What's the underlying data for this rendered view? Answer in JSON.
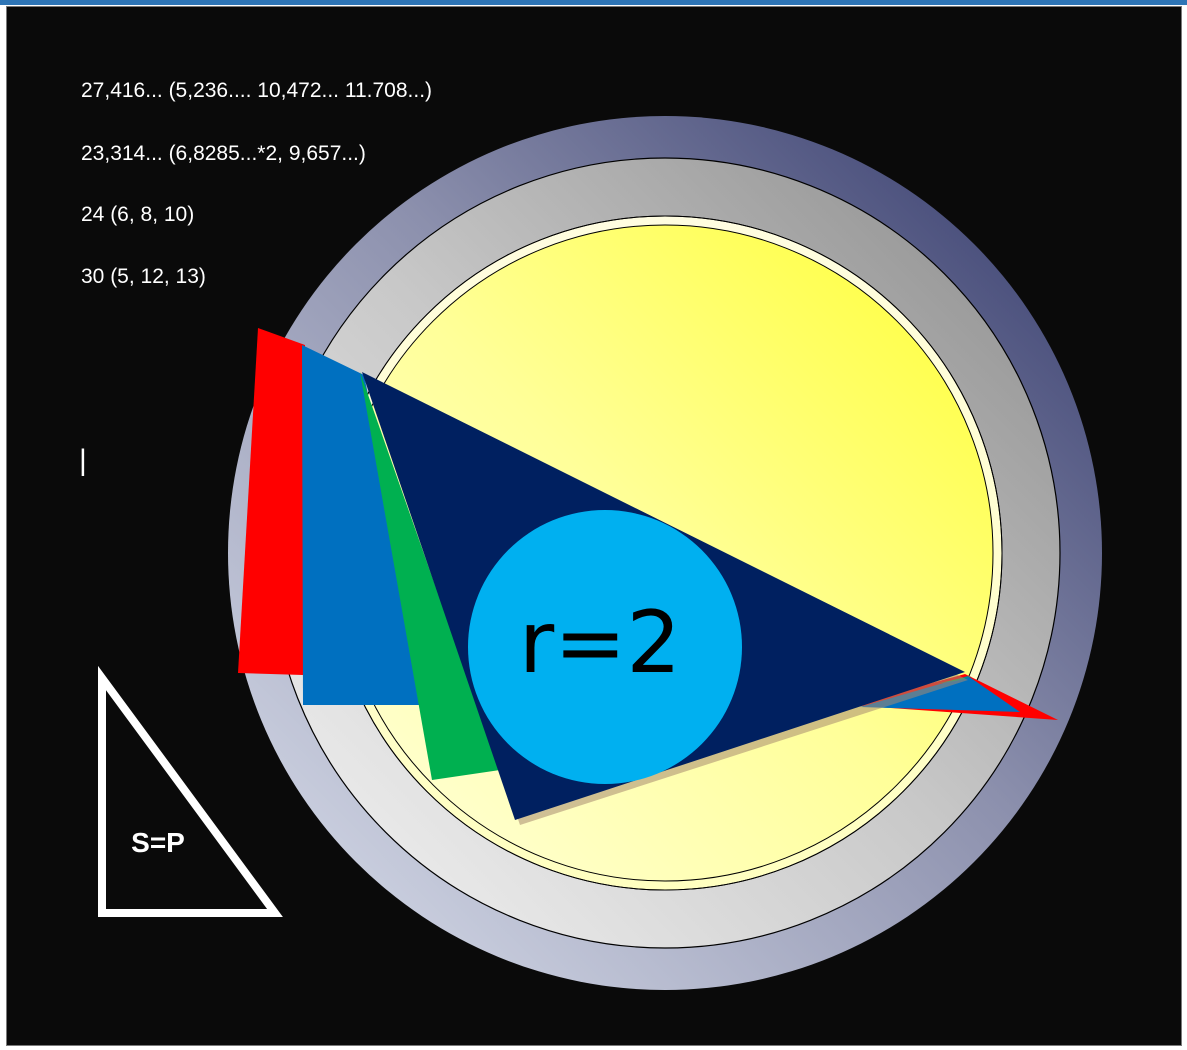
{
  "text_lines": [
    "27,416... (5,236.... 10,472... 11.708...)",
    "23,314... (6,8285...*2, 9,657...)",
    "24 (6, 8, 10)",
    "30 (5, 12, 13)"
  ],
  "cursor": "|",
  "incircle_label": "r=2",
  "legend_triangle_label": "S=P",
  "colors": {
    "background": "#0a0a0a",
    "outer_ring": "#6c7297",
    "mid_ring": "#c7c7c7",
    "inner_disk": "#ffff5a",
    "red_triangle": "#ff0000",
    "blue_triangle": "#0070c0",
    "green_triangle": "#00b050",
    "navy_triangle": "#002060",
    "incircle": "#00b0f0"
  }
}
